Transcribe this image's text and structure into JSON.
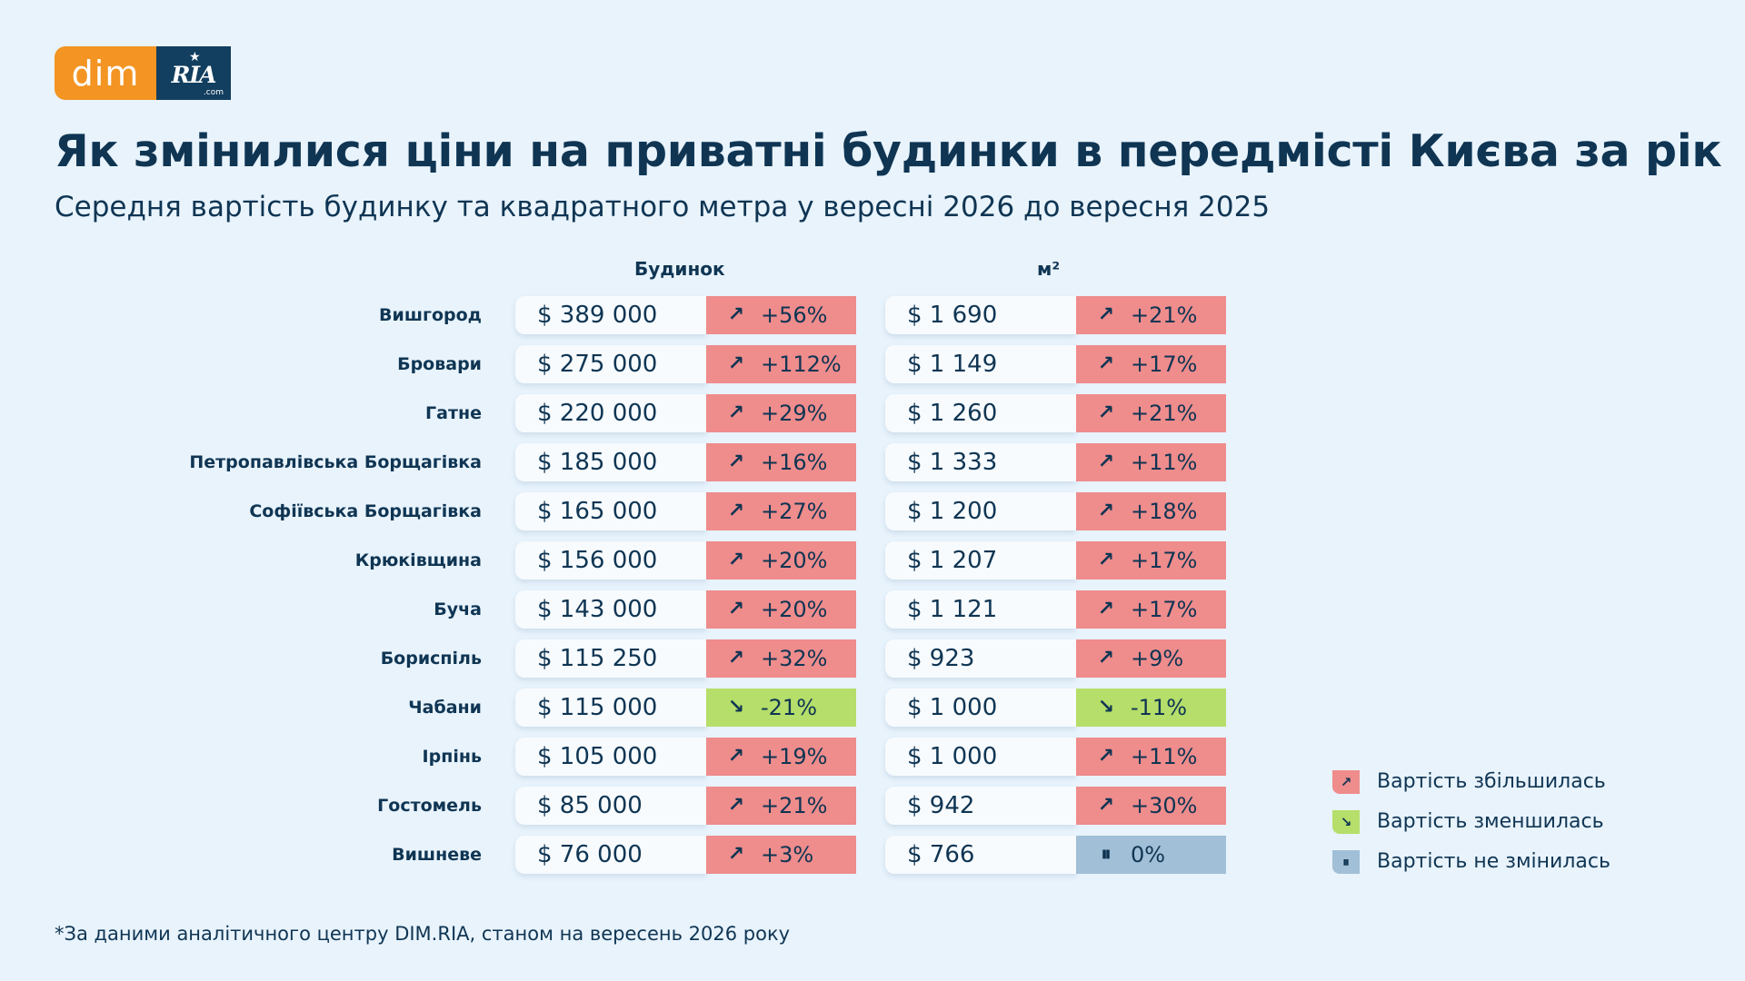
{
  "logo": {
    "left_text": "dim",
    "right_text": "RIA",
    "right_suffix": ".com"
  },
  "title": "Як змінилися ціни на приватні будинки в передмісті Києва за рік",
  "subtitle": "Середня вартість будинку та квадратного метра у вересні 2026 до вересня 2025",
  "columns": {
    "house": "Будинок",
    "sqm": "м²"
  },
  "colors": {
    "increase": "#ef8c8c",
    "decrease": "#b5de6a",
    "unchanged": "#a1bfd6",
    "background": "#e8f3fc",
    "text": "#0f3553",
    "brand_orange": "#f39423",
    "brand_navy": "#123e5f"
  },
  "icons": {
    "increase": "arrow-up-right-icon",
    "decrease": "arrow-down-right-icon",
    "unchanged": "pause-icon"
  },
  "chart_data": {
    "type": "table",
    "title": "Як змінилися ціни на приватні будинки в передмісті Києва за рік",
    "subtitle": "Середня вартість будинку та квадратного метра у вересні 2026 до вересня 2025",
    "columns": [
      "Будинок",
      "м²"
    ],
    "rows": [
      {
        "location": "Вишгород",
        "house_price": "$ 389 000",
        "house_change": "+56%",
        "house_dir": "up",
        "sqm_price": "$ 1 690",
        "sqm_change": "+21%",
        "sqm_dir": "up"
      },
      {
        "location": "Бровари",
        "house_price": "$ 275 000",
        "house_change": "+112%",
        "house_dir": "up",
        "sqm_price": "$ 1 149",
        "sqm_change": "+17%",
        "sqm_dir": "up"
      },
      {
        "location": "Гатне",
        "house_price": "$ 220 000",
        "house_change": "+29%",
        "house_dir": "up",
        "sqm_price": "$ 1 260",
        "sqm_change": "+21%",
        "sqm_dir": "up"
      },
      {
        "location": "Петропавлівська Борщагівка",
        "house_price": "$ 185 000",
        "house_change": "+16%",
        "house_dir": "up",
        "sqm_price": "$ 1 333",
        "sqm_change": "+11%",
        "sqm_dir": "up"
      },
      {
        "location": "Софіївська Борщагівка",
        "house_price": "$ 165 000",
        "house_change": "+27%",
        "house_dir": "up",
        "sqm_price": "$ 1 200",
        "sqm_change": "+18%",
        "sqm_dir": "up"
      },
      {
        "location": "Крюківщина",
        "house_price": "$ 156 000",
        "house_change": "+20%",
        "house_dir": "up",
        "sqm_price": "$ 1 207",
        "sqm_change": "+17%",
        "sqm_dir": "up"
      },
      {
        "location": "Буча",
        "house_price": "$ 143 000",
        "house_change": "+20%",
        "house_dir": "up",
        "sqm_price": "$ 1 121",
        "sqm_change": "+17%",
        "sqm_dir": "up"
      },
      {
        "location": "Бориспіль",
        "house_price": "$ 115 250",
        "house_change": "+32%",
        "house_dir": "up",
        "sqm_price": "$ 923",
        "sqm_change": "+9%",
        "sqm_dir": "up"
      },
      {
        "location": "Чабани",
        "house_price": "$ 115 000",
        "house_change": "-21%",
        "house_dir": "down",
        "sqm_price": "$ 1 000",
        "sqm_change": "-11%",
        "sqm_dir": "down"
      },
      {
        "location": "Ірпінь",
        "house_price": "$ 105 000",
        "house_change": "+19%",
        "house_dir": "up",
        "sqm_price": "$ 1 000",
        "sqm_change": "+11%",
        "sqm_dir": "up"
      },
      {
        "location": "Гостомель",
        "house_price": "$ 85 000",
        "house_change": "+21%",
        "house_dir": "up",
        "sqm_price": "$ 942",
        "sqm_change": "+30%",
        "sqm_dir": "up"
      },
      {
        "location": "Вишневе",
        "house_price": "$ 76 000",
        "house_change": "+3%",
        "house_dir": "up",
        "sqm_price": "$ 766",
        "sqm_change": "0%",
        "sqm_dir": "flat"
      }
    ],
    "legend": [
      {
        "key": "up",
        "label": "Вартість збільшилась"
      },
      {
        "key": "down",
        "label": "Вартість зменшилась"
      },
      {
        "key": "flat",
        "label": "Вартість не змінилась"
      }
    ]
  },
  "footnote": "*За даними аналітичного центру DIM.RIA, станом на вересень 2026 року"
}
